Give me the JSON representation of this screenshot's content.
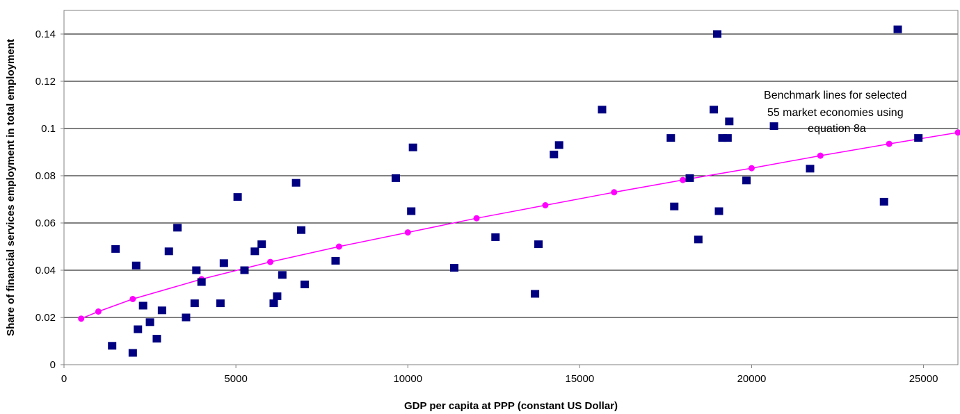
{
  "chart_data": {
    "type": "scatter",
    "xlabel": "GDP per capita at PPP (constant US Dollar)",
    "ylabel": "Share of financial services employment in total employment",
    "xlim": [
      0,
      26000
    ],
    "ylim": [
      0,
      0.15
    ],
    "x_ticks": [
      0,
      5000,
      10000,
      15000,
      20000,
      25000
    ],
    "y_ticks": [
      0,
      0.02,
      0.04,
      0.06,
      0.08,
      0.1,
      0.12,
      0.14
    ],
    "y_tick_labels": [
      "0",
      "0.02",
      "0.04",
      "0.06",
      "0.08",
      "0.1",
      "0.12",
      "0.14"
    ],
    "grid": "horizontal",
    "annotation": [
      "Benchmark lines for selected",
      "55 market economies using",
      "equation 8a"
    ],
    "series": [
      {
        "type": "scatter",
        "marker": "square",
        "color": "#000080",
        "points": [
          [
            1400,
            0.008
          ],
          [
            1500,
            0.049
          ],
          [
            2000,
            0.005
          ],
          [
            2100,
            0.042
          ],
          [
            2150,
            0.015
          ],
          [
            2300,
            0.025
          ],
          [
            2500,
            0.018
          ],
          [
            2700,
            0.011
          ],
          [
            2850,
            0.023
          ],
          [
            3050,
            0.048
          ],
          [
            3300,
            0.058
          ],
          [
            3550,
            0.02
          ],
          [
            3800,
            0.026
          ],
          [
            3850,
            0.04
          ],
          [
            4000,
            0.035
          ],
          [
            4550,
            0.026
          ],
          [
            4650,
            0.043
          ],
          [
            5050,
            0.071
          ],
          [
            5250,
            0.04
          ],
          [
            5550,
            0.048
          ],
          [
            5750,
            0.051
          ],
          [
            6100,
            0.026
          ],
          [
            6200,
            0.029
          ],
          [
            6350,
            0.038
          ],
          [
            6750,
            0.077
          ],
          [
            6900,
            0.057
          ],
          [
            7000,
            0.034
          ],
          [
            7900,
            0.044
          ],
          [
            9650,
            0.079
          ],
          [
            10100,
            0.065
          ],
          [
            10150,
            0.092
          ],
          [
            11350,
            0.041
          ],
          [
            12550,
            0.054
          ],
          [
            13700,
            0.03
          ],
          [
            13800,
            0.051
          ],
          [
            14250,
            0.089
          ],
          [
            14400,
            0.093
          ],
          [
            15650,
            0.108
          ],
          [
            17650,
            0.096
          ],
          [
            17750,
            0.067
          ],
          [
            18200,
            0.079
          ],
          [
            18450,
            0.053
          ],
          [
            18900,
            0.108
          ],
          [
            19000,
            0.14
          ],
          [
            19050,
            0.065
          ],
          [
            19150,
            0.096
          ],
          [
            19300,
            0.096
          ],
          [
            19350,
            0.103
          ],
          [
            19850,
            0.078
          ],
          [
            20650,
            0.101
          ],
          [
            21700,
            0.083
          ],
          [
            23850,
            0.069
          ],
          [
            24250,
            0.142
          ],
          [
            24850,
            0.096
          ]
        ]
      },
      {
        "type": "line",
        "marker": "circle",
        "color": "#ff00ff",
        "points": [
          [
            500,
            0.0195
          ],
          [
            1000,
            0.0225
          ],
          [
            2000,
            0.0278
          ],
          [
            4000,
            0.0362
          ],
          [
            6000,
            0.0435
          ],
          [
            8000,
            0.05
          ],
          [
            10000,
            0.056
          ],
          [
            12000,
            0.062
          ],
          [
            14000,
            0.0675
          ],
          [
            16000,
            0.073
          ],
          [
            18000,
            0.0782
          ],
          [
            20000,
            0.0832
          ],
          [
            22000,
            0.0885
          ],
          [
            24000,
            0.0935
          ],
          [
            26000,
            0.0983
          ]
        ]
      }
    ]
  }
}
